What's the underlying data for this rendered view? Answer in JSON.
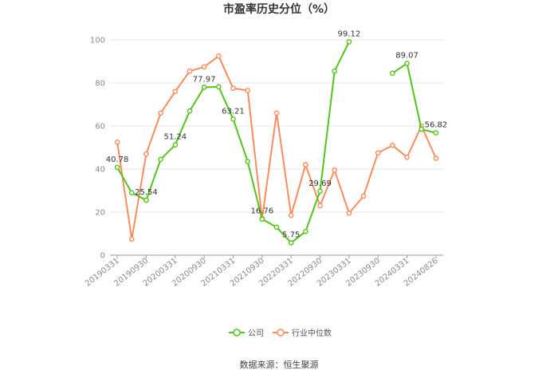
{
  "chart_data": {
    "type": "line",
    "title": "市盈率历史分位（%）",
    "xlabel": "",
    "ylabel": "",
    "ylim": [
      0,
      100
    ],
    "yticks": [
      0,
      20,
      40,
      60,
      80,
      100
    ],
    "x": [
      "20190331",
      "20190630",
      "20190930",
      "20191231",
      "20200331",
      "20200630",
      "20200930",
      "20201231",
      "20210331",
      "20210630",
      "20210930",
      "20211231",
      "20220331",
      "20220630",
      "20220930",
      "20221231",
      "20230331",
      "20230630",
      "20230930",
      "20231231",
      "20240331",
      "20240630",
      "20240826"
    ],
    "xtick_labels": [
      "20190331",
      "20190930",
      "20200331",
      "20200930",
      "20210331",
      "20210930",
      "20220331",
      "20220930",
      "20230331",
      "20230930",
      "20240331",
      "20240826"
    ],
    "grid": true,
    "legend_position": "bottom",
    "series": [
      {
        "name": "公司",
        "color": "#52c41a",
        "values": [
          40.78,
          29,
          25.54,
          44.5,
          51.24,
          67,
          77.97,
          78.2,
          63.21,
          43.5,
          16.76,
          13,
          5.75,
          11,
          29.69,
          85.5,
          99.12,
          null,
          null,
          84.5,
          89.07,
          58.5,
          56.82
        ],
        "labels": {
          "0": "40.78",
          "2": "25.54",
          "4": "51.24",
          "6": "77.97",
          "8": "63.21",
          "10": "16.76",
          "12": "5.75",
          "14": "29.69",
          "16": "99.12",
          "20": "89.07",
          "22": "56.82"
        }
      },
      {
        "name": "行业中位数",
        "color": "#fa8c5c",
        "values": [
          52.5,
          7.5,
          47,
          66,
          76,
          85.5,
          87.5,
          92.5,
          77.5,
          76.5,
          17,
          66,
          18.5,
          42,
          23,
          39.5,
          19.5,
          27.5,
          47.5,
          51,
          45.5,
          60,
          45
        ]
      }
    ]
  },
  "source_text": "数据来源：恒生聚源"
}
